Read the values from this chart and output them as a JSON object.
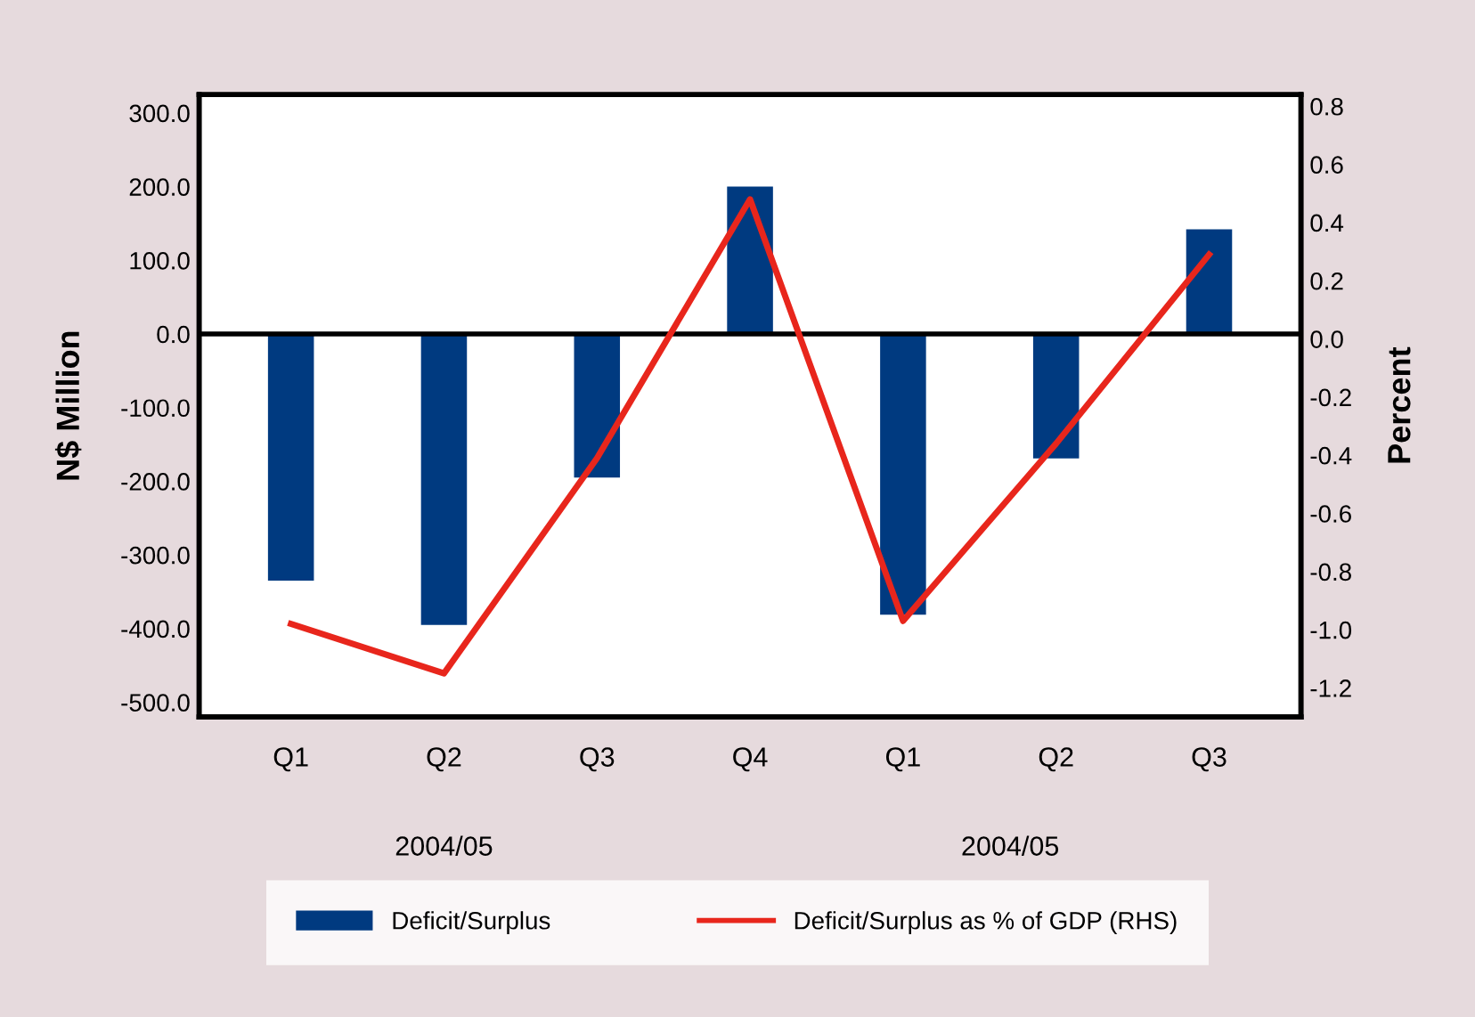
{
  "chart_data": {
    "type": "bar",
    "categories": [
      "Q1",
      "Q2",
      "Q3",
      "Q4",
      "Q1",
      "Q2",
      "Q3"
    ],
    "ylabel": "N$ Million",
    "y2label": "Percent",
    "ylim": [
      -520,
      325
    ],
    "yticks": [
      {
        "value": -500,
        "label": "-500.0"
      },
      {
        "value": -400,
        "label": "-400.0"
      },
      {
        "value": -300,
        "label": "-300.0"
      },
      {
        "value": -200,
        "label": "-200.0"
      },
      {
        "value": -100,
        "label": "-100.0"
      },
      {
        "value": 0,
        "label": "0.0"
      },
      {
        "value": 100,
        "label": "100.0"
      },
      {
        "value": 200,
        "label": "200.0"
      },
      {
        "value": 300,
        "label": "300.0"
      }
    ],
    "y2lim": [
      -1.3,
      0.84
    ],
    "y2ticks": [
      {
        "value": -1.2,
        "label": "-1.2"
      },
      {
        "value": -1.0,
        "label": "-1.0"
      },
      {
        "value": -0.8,
        "label": "-0.8"
      },
      {
        "value": -0.6,
        "label": "-0.6"
      },
      {
        "value": -0.4,
        "label": "-0.4"
      },
      {
        "value": -0.2,
        "label": "-0.2"
      },
      {
        "value": 0,
        "label": "0.0"
      },
      {
        "value": 0.2,
        "label": "0.2"
      },
      {
        "value": 0.4,
        "label": "0.4"
      },
      {
        "value": 0.6,
        "label": "0.6"
      },
      {
        "value": 0.8,
        "label": "0.8"
      }
    ],
    "series": [
      {
        "name": "Deficit/Surplus",
        "color": "#003a80",
        "values": [
          -335,
          -395,
          -195,
          200,
          -381,
          -169,
          142
        ]
      },
      {
        "name": "Deficit/Surplus as % of GDP (RHS)",
        "type": "line",
        "axis": "y2",
        "color": "#e8261c",
        "values": [
          -0.98,
          -1.15,
          -0.41,
          0.48,
          -0.97,
          -0.36,
          0.29
        ]
      }
    ],
    "annotations": [
      "2004/05",
      "2004/05"
    ],
    "ref_lines": [
      {
        "axis": "y",
        "value": 0,
        "color": "#000000"
      }
    ],
    "legend": "bottom",
    "grid": false
  }
}
